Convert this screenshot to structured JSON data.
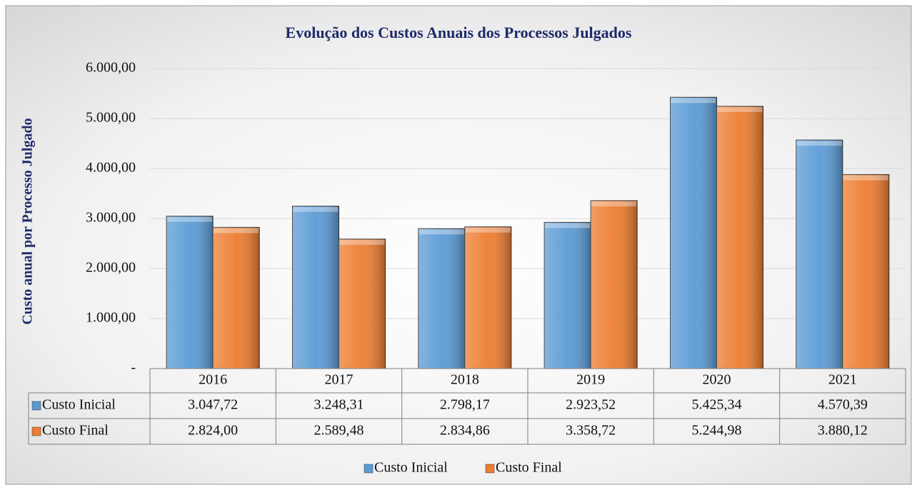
{
  "chart_data": {
    "type": "bar",
    "title": "Evolução dos Custos Anuais dos Processos Julgados",
    "y_label": "Custo anual por Processo Julgado",
    "categories": [
      "2016",
      "2017",
      "2018",
      "2019",
      "2020",
      "2021"
    ],
    "series": [
      {
        "name": "Custo Inicial",
        "color": "#5b9bd5",
        "values": [
          3047.72,
          3248.31,
          2798.17,
          2923.52,
          5425.34,
          4570.39
        ],
        "value_labels": [
          "3.047,72",
          "3.248,31",
          "2.798,17",
          "2.923,52",
          "5.425,34",
          "4.570,39"
        ]
      },
      {
        "name": "Custo Final",
        "color": "#ed7d31",
        "values": [
          2824.0,
          2589.48,
          2834.86,
          3358.72,
          5244.98,
          3880.12
        ],
        "value_labels": [
          "2.824,00",
          "2.589,48",
          "2.834,86",
          "3.358,72",
          "5.244,98",
          "3.880,12"
        ]
      }
    ],
    "ylim": [
      0,
      6000
    ],
    "yticks": [
      {
        "value": 0,
        "label": "-"
      },
      {
        "value": 1000,
        "label": "1.000,00"
      },
      {
        "value": 2000,
        "label": "2.000,00"
      },
      {
        "value": 3000,
        "label": "3.000,00"
      },
      {
        "value": 4000,
        "label": "4.000,00"
      },
      {
        "value": 5000,
        "label": "5.000,00"
      },
      {
        "value": 6000,
        "label": "6.000,00"
      }
    ],
    "grid": true,
    "legend": "bottom"
  }
}
